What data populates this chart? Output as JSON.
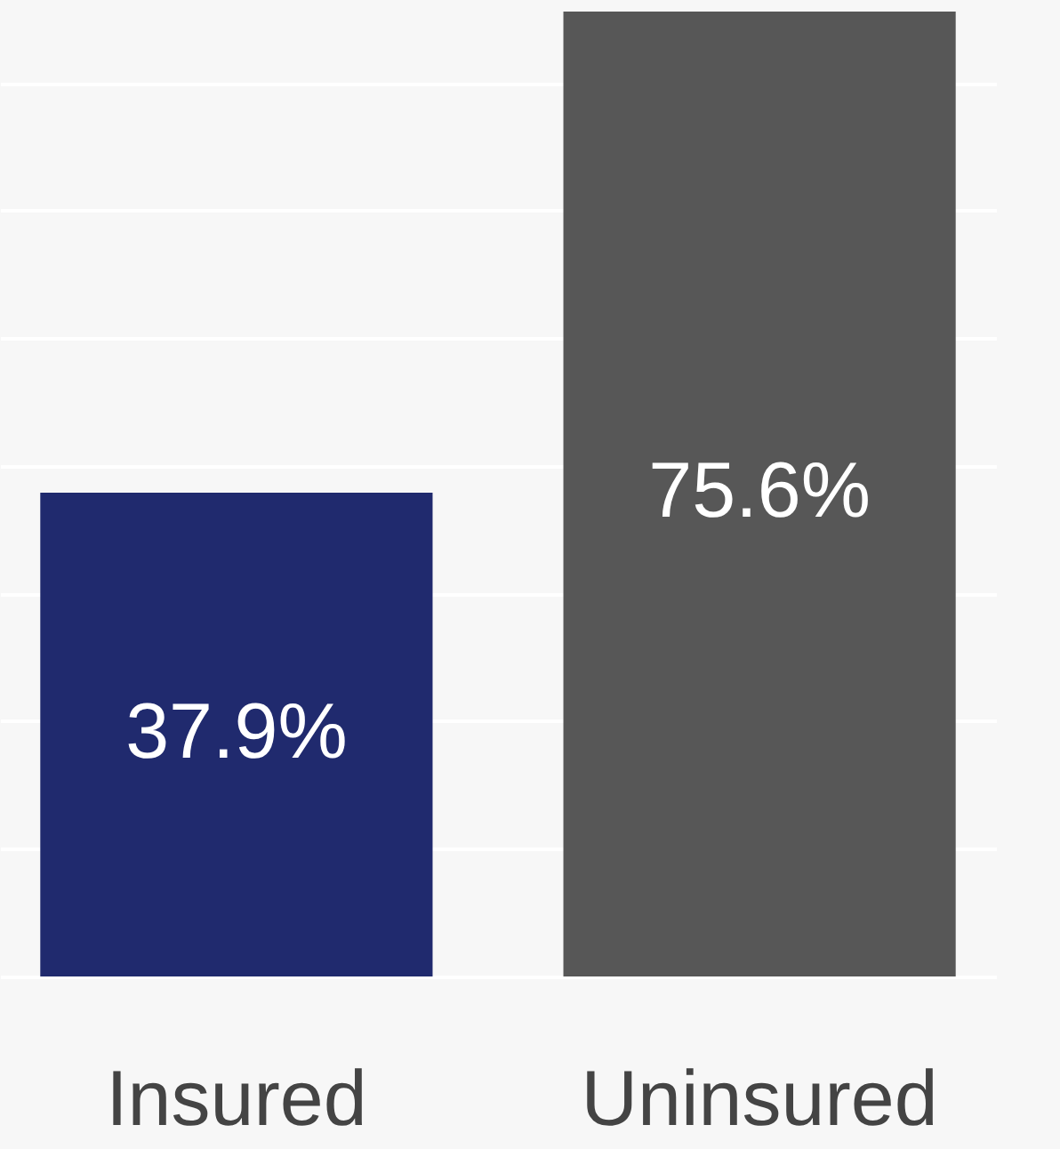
{
  "chart_data": {
    "type": "bar",
    "categories": [
      "Insured",
      "Uninsured"
    ],
    "values": [
      37.9,
      75.6
    ],
    "colors": [
      "#202a6e",
      "#575757"
    ],
    "value_labels": [
      "37.9%",
      "75.6%"
    ],
    "ylim": [
      0,
      76.5
    ],
    "yticks": [
      {
        "value": 0,
        "label": null
      },
      {
        "value": 10,
        "label": null
      },
      {
        "value": 20,
        "label": null
      },
      {
        "value": 30,
        "label": null
      },
      {
        "value": 40,
        "label": null
      },
      {
        "value": 50,
        "label": null
      },
      {
        "value": 60,
        "label": null
      },
      {
        "value": 70,
        "label": null
      }
    ],
    "grid": "y",
    "tick_labels": "x"
  }
}
